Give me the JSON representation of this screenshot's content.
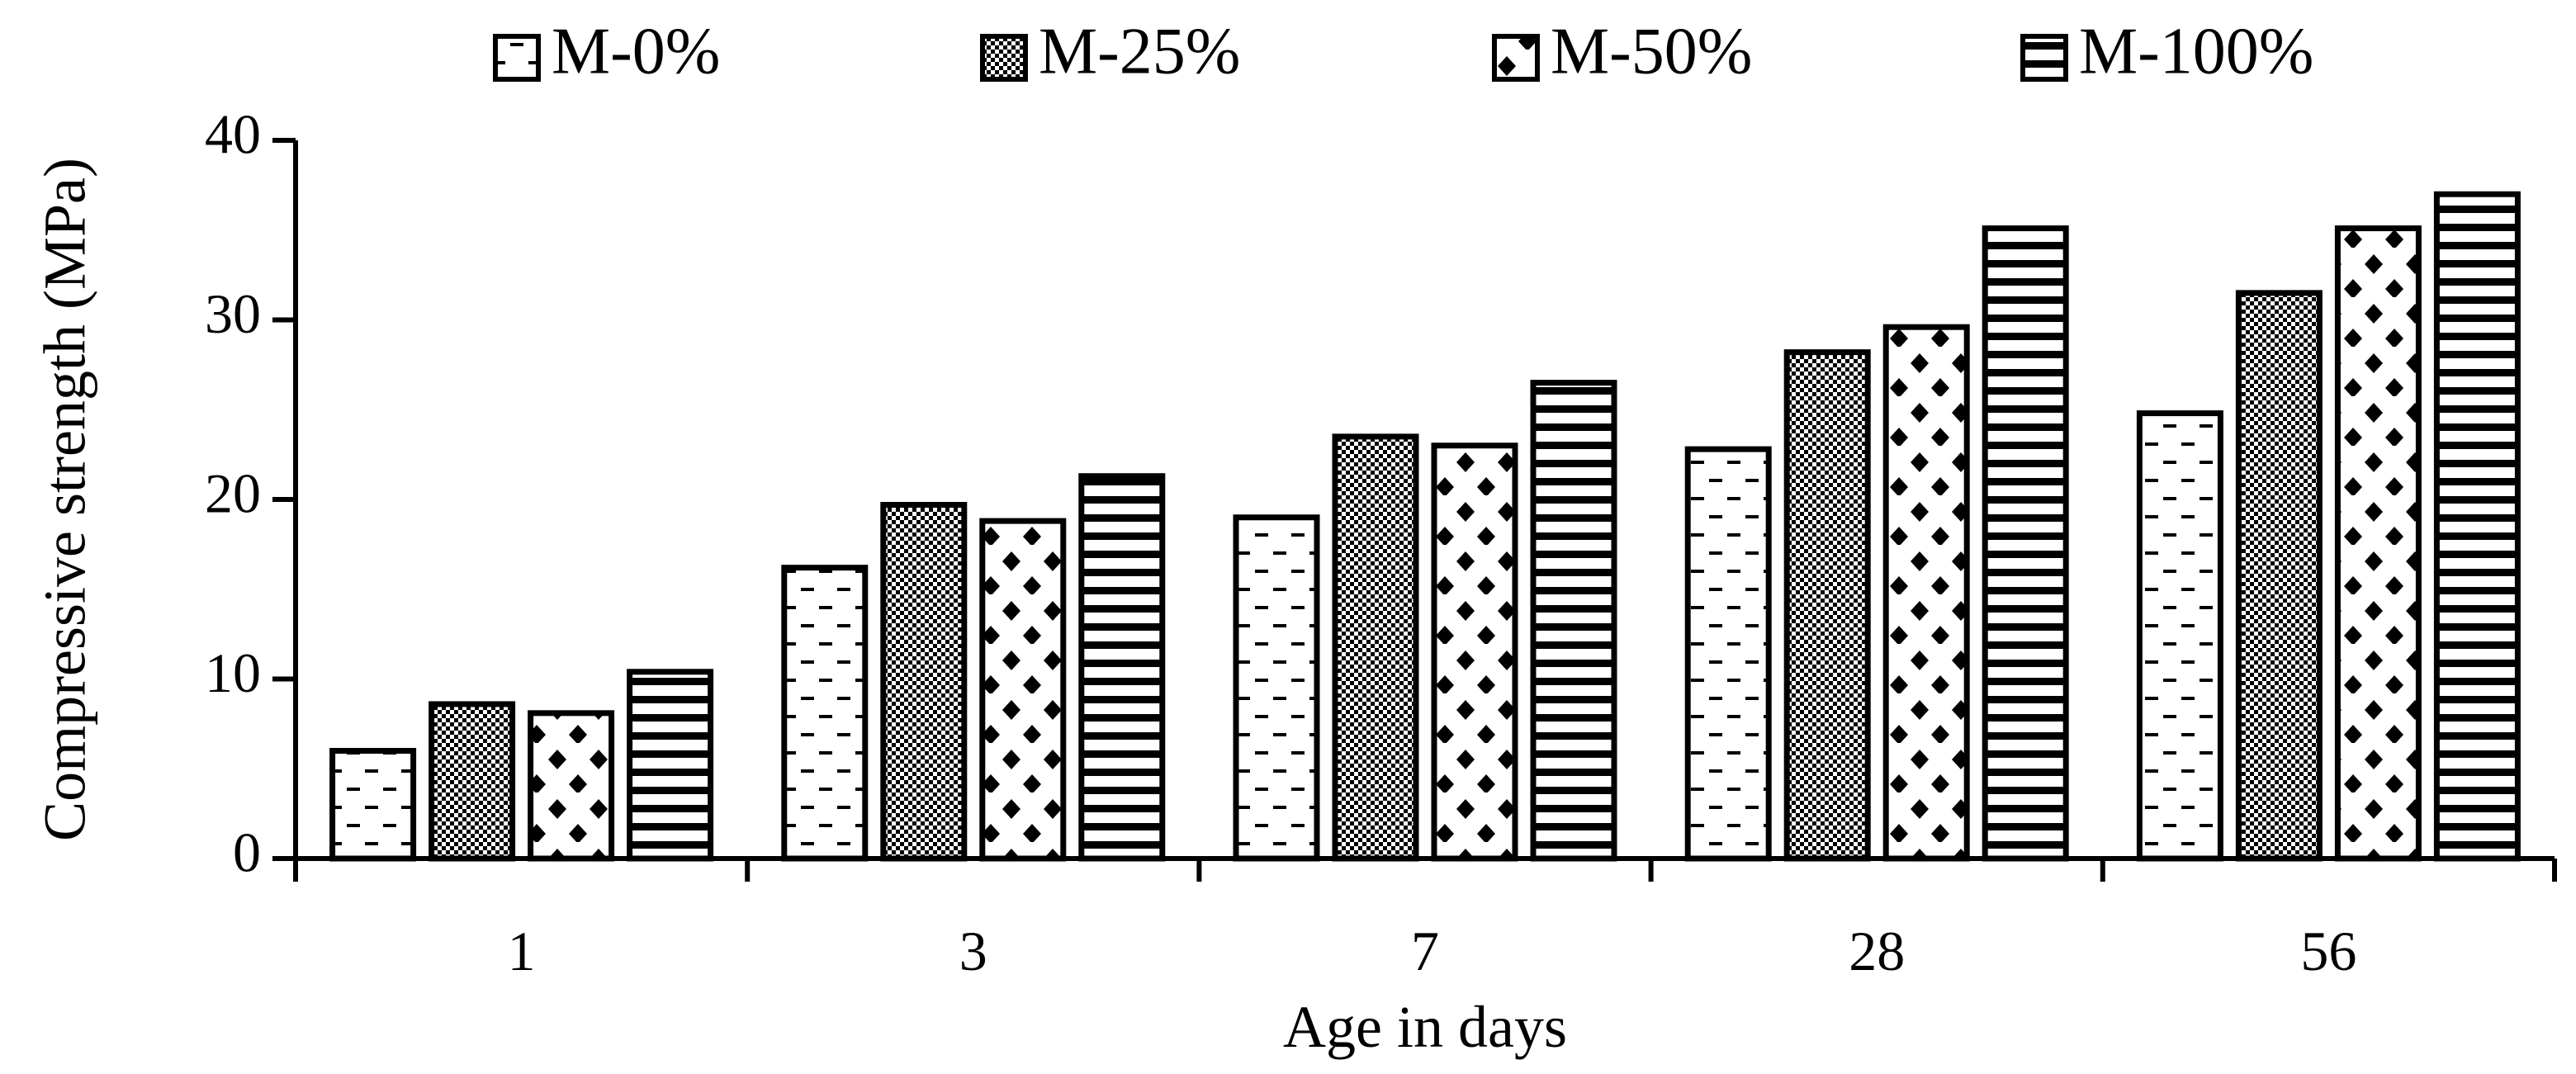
{
  "chart_data": {
    "type": "bar",
    "title": "",
    "xlabel": "Age in days",
    "ylabel": "Compressive strength (MPa)",
    "categories": [
      "1",
      "3",
      "7",
      "28",
      "56"
    ],
    "ylim": [
      0,
      40
    ],
    "yticks": [
      "0",
      "10",
      "20",
      "30",
      "40"
    ],
    "grid": false,
    "legend_position": "top",
    "series": [
      {
        "name": "M-0%",
        "pattern": "dash",
        "values": [
          6.0,
          16.2,
          19.0,
          22.8,
          24.8
        ]
      },
      {
        "name": "M-25%",
        "pattern": "checker",
        "values": [
          8.6,
          19.7,
          23.5,
          28.2,
          31.5
        ]
      },
      {
        "name": "M-50%",
        "pattern": "diamond",
        "values": [
          8.1,
          18.8,
          23.0,
          29.6,
          35.1
        ]
      },
      {
        "name": "M-100%",
        "pattern": "stripe",
        "values": [
          10.4,
          21.3,
          26.5,
          35.1,
          37.0
        ]
      }
    ],
    "colors": {
      "ink": "#000000",
      "paper": "#ffffff"
    }
  }
}
